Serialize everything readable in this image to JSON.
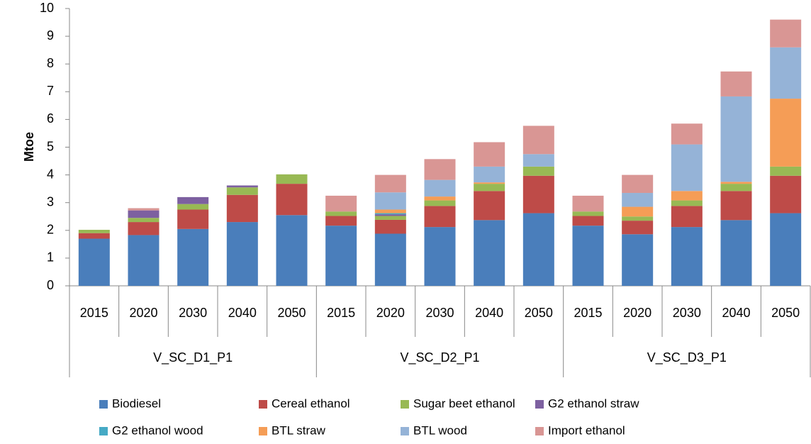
{
  "chart_data": {
    "type": "stacked-bar",
    "y_label": "Mtoe",
    "groups": [
      {
        "name": "V_SC_D1_P1",
        "categories": [
          "2015",
          "2020",
          "2030",
          "2040",
          "2050"
        ]
      },
      {
        "name": "V_SC_D2_P1",
        "categories": [
          "2015",
          "2020",
          "2030",
          "2040",
          "2050"
        ]
      },
      {
        "name": "V_SC_D3_P1",
        "categories": [
          "2015",
          "2020",
          "2030",
          "2040",
          "2050"
        ]
      }
    ],
    "series": [
      {
        "name": "Biodiesel",
        "color": "#4a7ebb",
        "values": [
          1.7,
          1.83,
          2.05,
          2.3,
          2.55,
          2.17,
          1.88,
          2.12,
          2.37,
          2.62,
          2.17,
          1.86,
          2.12,
          2.37,
          2.62
        ]
      },
      {
        "name": "Cereal ethanol",
        "color": "#be4b48",
        "values": [
          0.2,
          0.47,
          0.7,
          0.98,
          1.13,
          0.35,
          0.5,
          0.76,
          1.05,
          1.35,
          0.35,
          0.49,
          0.76,
          1.05,
          1.35
        ]
      },
      {
        "name": "Sugar beet ethanol",
        "color": "#98b954",
        "values": [
          0.12,
          0.15,
          0.2,
          0.27,
          0.34,
          0.16,
          0.14,
          0.2,
          0.26,
          0.33,
          0.16,
          0.15,
          0.2,
          0.26,
          0.33
        ]
      },
      {
        "name": "G2 ethanol straw",
        "color": "#7d60a0",
        "values": [
          0,
          0.27,
          0.25,
          0.07,
          0,
          0,
          0.06,
          0,
          0,
          0,
          0,
          0,
          0,
          0,
          0
        ]
      },
      {
        "name": "G2 ethanol wood",
        "color": "#46aac5",
        "values": [
          0,
          0,
          0,
          0,
          0,
          0,
          0.04,
          0,
          0,
          0,
          0,
          0,
          0,
          0,
          0
        ]
      },
      {
        "name": "BTL straw",
        "color": "#f59d56",
        "values": [
          0,
          0,
          0,
          0,
          0,
          0,
          0.13,
          0.14,
          0.05,
          0,
          0,
          0.35,
          0.34,
          0.07,
          2.45
        ]
      },
      {
        "name": "BTL wood",
        "color": "#95b3d7",
        "values": [
          0,
          0,
          0,
          0,
          0,
          0,
          0.62,
          0.6,
          0.57,
          0.45,
          0,
          0.5,
          1.68,
          3.08,
          1.85
        ]
      },
      {
        "name": "Import ethanol",
        "color": "#d99694",
        "values": [
          0,
          0.08,
          0,
          0,
          0,
          0.57,
          0.63,
          0.75,
          0.88,
          1.02,
          0.57,
          0.65,
          0.75,
          0.9,
          1.0
        ]
      }
    ],
    "ylim": [
      0,
      10
    ],
    "yticks": [
      0,
      1,
      2,
      3,
      4,
      5,
      6,
      7,
      8,
      9,
      10
    ]
  }
}
